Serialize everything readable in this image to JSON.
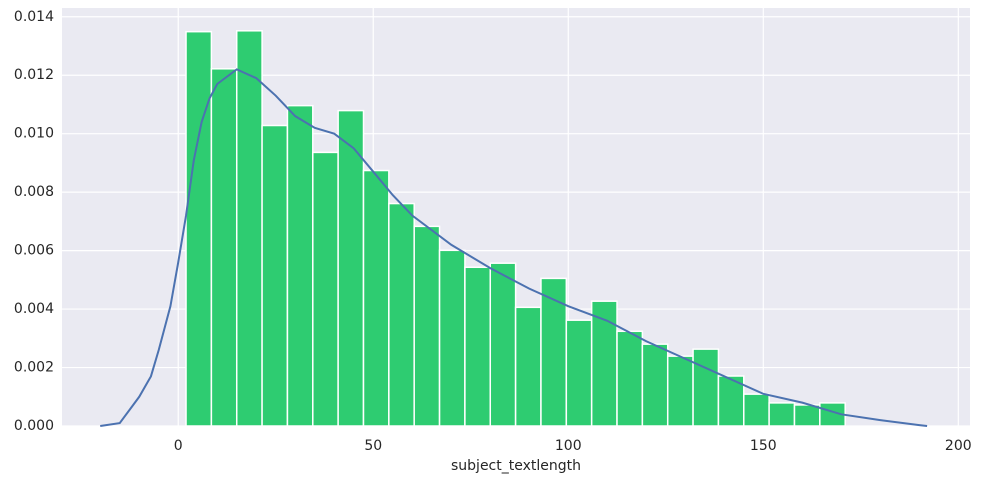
{
  "chart_data": {
    "type": "histogram",
    "xlabel": "subject_textlength",
    "bins": [
      2,
      8.5,
      15,
      21.5,
      28,
      34.5,
      41,
      47.5,
      54,
      60.5,
      67,
      73.5,
      80,
      86.5,
      93,
      99.5,
      106,
      112.5,
      119,
      125.5,
      132,
      138.5,
      145,
      151.5,
      158,
      164.5,
      171
    ],
    "values": [
      0.01349,
      0.01222,
      0.01352,
      0.01028,
      0.01096,
      0.00936,
      0.01079,
      0.00874,
      0.00761,
      0.00683,
      0.00601,
      0.00543,
      0.00557,
      0.00406,
      0.00505,
      0.00362,
      0.00427,
      0.00324,
      0.0028,
      0.00239,
      0.00263,
      0.00171,
      0.00109,
      0.00079,
      0.00072,
      0.00079
    ],
    "color": "#2ecc71",
    "line": {
      "color": "#4c72b0",
      "x": [
        -20,
        -15,
        -10,
        -7,
        -5,
        -2,
        0,
        2,
        4,
        6,
        8,
        10,
        15,
        20,
        25,
        30,
        35,
        40,
        45,
        50,
        55,
        60,
        70,
        80,
        90,
        100,
        110,
        120,
        130,
        140,
        150,
        160,
        170,
        180,
        190,
        192
      ],
      "values": [
        0,
        0.0001,
        0.001,
        0.0017,
        0.0026,
        0.0041,
        0.0056,
        0.0072,
        0.0091,
        0.0104,
        0.0112,
        0.0117,
        0.0122,
        0.0119,
        0.0113,
        0.0106,
        0.0102,
        0.01,
        0.0095,
        0.0087,
        0.0079,
        0.0072,
        0.0062,
        0.0054,
        0.0047,
        0.0041,
        0.0036,
        0.0029,
        0.0023,
        0.0017,
        0.0011,
        0.0008,
        0.0004,
        0.0002,
        3e-05,
        0
      ]
    },
    "xlim": [
      -29.8,
      203
    ],
    "ylim": [
      0,
      0.0143
    ],
    "xticks": [
      0,
      50,
      100,
      150,
      200
    ],
    "yticks": [
      {
        "value": 0,
        "label": "0.000"
      },
      {
        "value": 0.002,
        "label": "0.002"
      },
      {
        "value": 0.004,
        "label": "0.004"
      },
      {
        "value": 0.006,
        "label": "0.006"
      },
      {
        "value": 0.008,
        "label": "0.008"
      },
      {
        "value": 0.01,
        "label": "0.010"
      },
      {
        "value": 0.012,
        "label": "0.012"
      },
      {
        "value": 0.014,
        "label": "0.014"
      }
    ],
    "grid": true
  }
}
